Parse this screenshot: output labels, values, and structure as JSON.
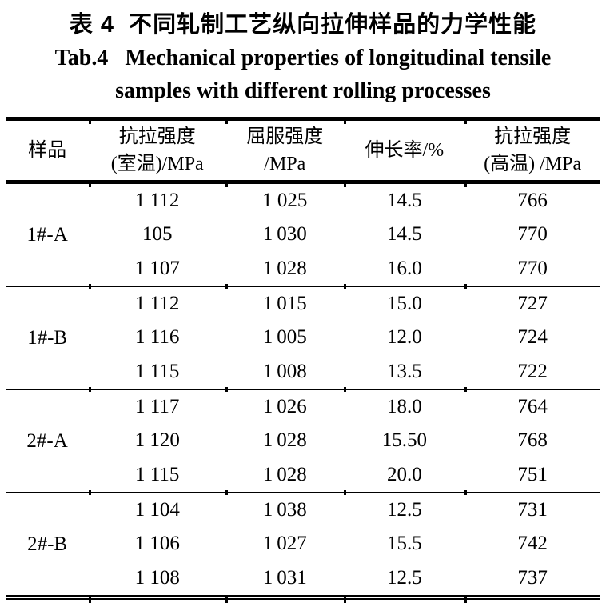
{
  "titles": {
    "zh": "表 4  不同轧制工艺纵向拉伸样品的力学性能",
    "en_line1": "Tab.4   Mechanical properties of longitudinal tensile",
    "en_line2": "samples with different rolling processes"
  },
  "table": {
    "columns": [
      {
        "id": "sample",
        "lines": [
          "样品"
        ]
      },
      {
        "id": "tensile-strength-rt",
        "lines": [
          "抗拉强度",
          "(室温)/MPa"
        ]
      },
      {
        "id": "yield-strength",
        "lines": [
          "屈服强度",
          "/MPa"
        ]
      },
      {
        "id": "elongation",
        "lines": [
          "伸长率/%"
        ]
      },
      {
        "id": "tensile-strength-ht",
        "lines": [
          "抗拉强度",
          "(高温) /MPa"
        ]
      }
    ],
    "groups": [
      {
        "sample": "1#-A",
        "rows": [
          [
            "1 112",
            "1 025",
            "14.5",
            "766"
          ],
          [
            "105",
            "1 030",
            "14.5",
            "770"
          ],
          [
            "1 107",
            "1 028",
            "16.0",
            "770"
          ]
        ]
      },
      {
        "sample": "1#-B",
        "rows": [
          [
            "1 112",
            "1 015",
            "15.0",
            "727"
          ],
          [
            "1 116",
            "1 005",
            "12.0",
            "724"
          ],
          [
            "1 115",
            "1 008",
            "13.5",
            "722"
          ]
        ]
      },
      {
        "sample": "2#-A",
        "rows": [
          [
            "1 117",
            "1 026",
            "18.0",
            "764"
          ],
          [
            "1 120",
            "1 028",
            "15.50",
            "768"
          ],
          [
            "1 115",
            "1 028",
            "20.0",
            "751"
          ]
        ]
      },
      {
        "sample": "2#-B",
        "rows": [
          [
            "1 104",
            "1 038",
            "12.5",
            "731"
          ],
          [
            "1 106",
            "1 027",
            "15.5",
            "742"
          ],
          [
            "1 108",
            "1 031",
            "12.5",
            "737"
          ]
        ]
      }
    ]
  },
  "colors": {
    "text": "#000000",
    "rules": "#000000",
    "background": "#ffffff"
  }
}
